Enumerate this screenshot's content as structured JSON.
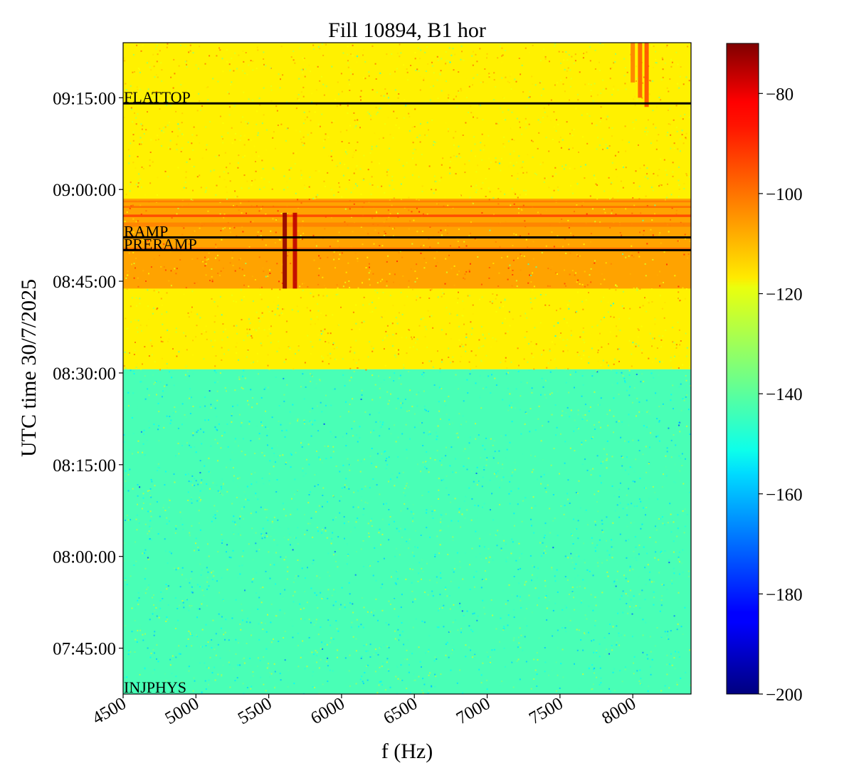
{
  "chart_data": {
    "type": "heatmap",
    "title": "Fill 10894, B1 hor",
    "xlabel": "f (Hz)",
    "ylabel": "UTC time 30/7/2025",
    "xlim": [
      4500,
      8400
    ],
    "ylim_minutes": [
      457.5,
      564.0
    ],
    "x_ticks": [
      {
        "value": 4500,
        "label": "4500"
      },
      {
        "value": 5000,
        "label": "5000"
      },
      {
        "value": 5500,
        "label": "5500"
      },
      {
        "value": 6000,
        "label": "6000"
      },
      {
        "value": 6500,
        "label": "6500"
      },
      {
        "value": 7000,
        "label": "7000"
      },
      {
        "value": 7500,
        "label": "7500"
      },
      {
        "value": 8000,
        "label": "8000"
      }
    ],
    "y_ticks": [
      {
        "value": 465,
        "label": "07:45:00"
      },
      {
        "value": 480,
        "label": "08:00:00"
      },
      {
        "value": 495,
        "label": "08:15:00"
      },
      {
        "value": 510,
        "label": "08:30:00"
      },
      {
        "value": 525,
        "label": "08:45:00"
      },
      {
        "value": 540,
        "label": "09:00:00"
      },
      {
        "value": 555,
        "label": "09:15:00"
      }
    ],
    "colorbar": {
      "colormap": "jet",
      "min": -200,
      "max": -70,
      "ticks": [
        {
          "value": -80,
          "label": "−80"
        },
        {
          "value": -100,
          "label": "−100"
        },
        {
          "value": -120,
          "label": "−120"
        },
        {
          "value": -140,
          "label": "−140"
        },
        {
          "value": -160,
          "label": "−160"
        },
        {
          "value": -180,
          "label": "−180"
        },
        {
          "value": -200,
          "label": "−200"
        }
      ]
    },
    "phases": [
      {
        "name": "INJPHYS",
        "time": "07:37:30",
        "minutes": 457.5,
        "drawn_line": false
      },
      {
        "name": "PRERAMP",
        "time": "08:50:05",
        "minutes": 530.08,
        "drawn_line": true
      },
      {
        "name": "RAMP",
        "time": "08:52:10",
        "minutes": 532.17,
        "drawn_line": true
      },
      {
        "name": "FLATTOP",
        "time": "09:14:05",
        "minutes": 554.08,
        "drawn_line": true
      }
    ],
    "regions": [
      {
        "t_start": 457.5,
        "t_end": 510.6,
        "level_db": -142
      },
      {
        "t_start": 510.6,
        "t_end": 564.0,
        "level_db": -117
      },
      {
        "t_start": 523.8,
        "t_end": 538.5,
        "level_db": -107
      }
    ],
    "horizontal_lines": [
      {
        "t_start": 530.2,
        "t_end": 530.5,
        "level_db": -100
      },
      {
        "t_start": 533.9,
        "t_end": 534.6,
        "level_db": -103
      },
      {
        "t_start": 535.5,
        "t_end": 535.9,
        "level_db": -95
      },
      {
        "t_start": 537.0,
        "t_end": 537.3,
        "level_db": -100
      },
      {
        "t_start": 537.9,
        "t_end": 538.2,
        "level_db": -102
      }
    ],
    "vertical_lines": [
      {
        "f": 5610,
        "t_start": 523.8,
        "t_end": 536.2,
        "level_db": -72
      },
      {
        "f": 5680,
        "t_start": 523.8,
        "t_end": 536.2,
        "level_db": -78
      },
      {
        "f": 8000,
        "t_start": 557.5,
        "t_end": 564.0,
        "level_db": -102
      },
      {
        "f": 8050,
        "t_start": 555.0,
        "t_end": 564.0,
        "level_db": -98
      },
      {
        "f": 8095,
        "t_start": 553.5,
        "t_end": 564.0,
        "level_db": -96
      }
    ]
  }
}
